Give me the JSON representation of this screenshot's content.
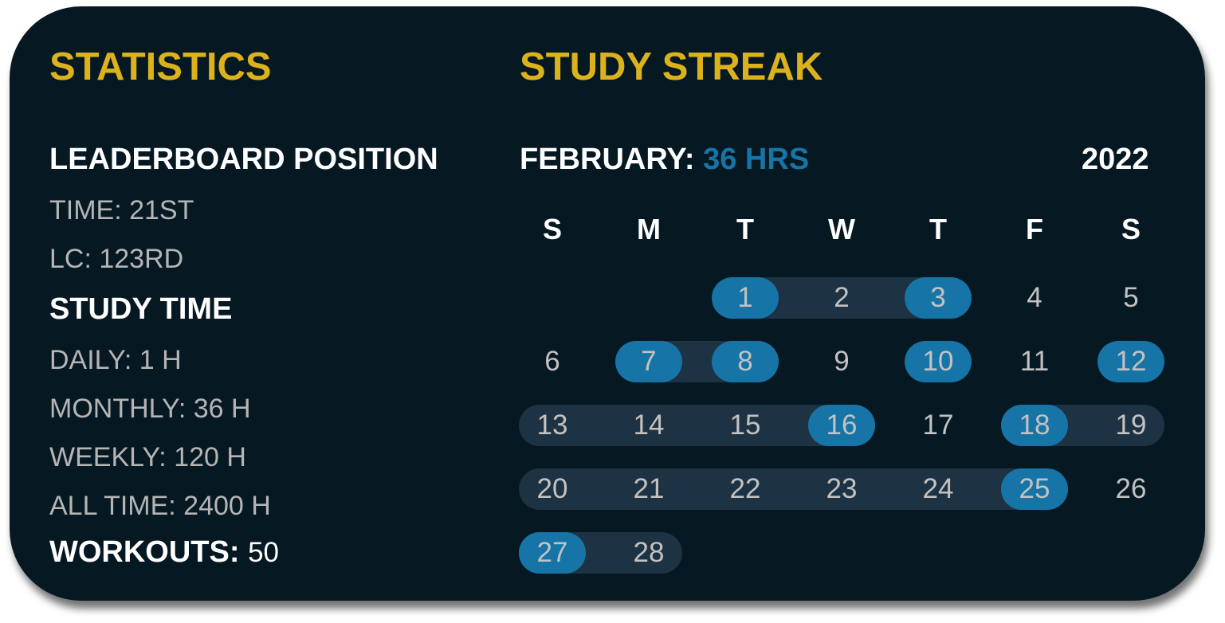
{
  "statistics": {
    "title": "STATISTICS",
    "leaderboard_heading": "LEADERBOARD POSITION",
    "leaderboard": [
      "TIME: 21ST",
      "LC: 123RD"
    ],
    "study_time_heading": "STUDY TIME",
    "study_time": [
      "DAILY: 1 H",
      "MONTHLY: 36 H",
      "WEEKLY: 120 H",
      "ALL TIME: 2400 H"
    ],
    "workouts_label": "WORKOUTS:",
    "workouts_value": "50"
  },
  "streak": {
    "title": "STUDY STREAK",
    "month_label": "FEBRUARY:",
    "month_hours": "36 HRS",
    "year": "2022",
    "weekdays": [
      "S",
      "M",
      "T",
      "W",
      "T",
      "F",
      "S"
    ]
  },
  "colors": {
    "accent": "#dcb21c",
    "highlight": "#1675a6",
    "streak_band": "#1d3344",
    "background": "#061822"
  },
  "chart_data": {
    "type": "heatmap",
    "month": "February",
    "year": 2022,
    "first_weekday_index": 2,
    "days_in_month": 28,
    "highlighted_days": [
      1,
      3,
      7,
      8,
      10,
      12,
      16,
      18,
      25,
      27
    ],
    "streaks": [
      [
        1,
        3
      ],
      [
        7,
        8
      ],
      [
        13,
        16
      ],
      [
        18,
        19
      ],
      [
        20,
        25
      ],
      [
        27,
        28
      ]
    ]
  }
}
